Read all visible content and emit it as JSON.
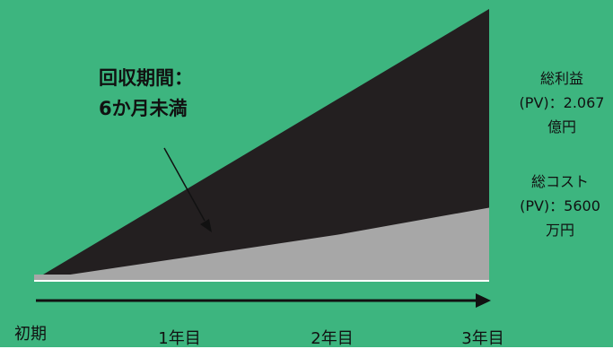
{
  "colors": {
    "background": "#3DB57F",
    "benefit": "#231F20",
    "cost": "#A7A7A7",
    "baseline": "#FFFFFF",
    "axis": "#111111"
  },
  "chart_data": {
    "type": "area",
    "x_categories": [
      "初期",
      "1年目",
      "2年目",
      "3年目"
    ],
    "series": [
      {
        "name": "総利益",
        "values": [
          0,
          20,
          40,
          60
        ]
      },
      {
        "name": "総コスト",
        "values": [
          0,
          5,
          10,
          16
        ]
      }
    ],
    "ylim": [
      0,
      60
    ],
    "grid": false,
    "legend": "none"
  },
  "annotation": {
    "line1": "回収期間：",
    "line2": "6か月未満"
  },
  "labels": {
    "benefit": {
      "line1": "総利益",
      "line2": "(PV)：2.067",
      "line3": "億円"
    },
    "cost": {
      "line1": "総コスト",
      "line2": "(PV)：5600",
      "line3": "万円"
    }
  }
}
